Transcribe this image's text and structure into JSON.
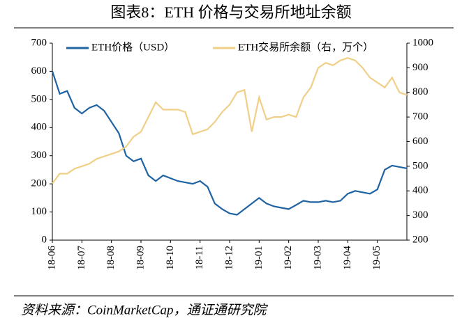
{
  "chart_data": {
    "type": "line",
    "title": "图表8：ETH 价格与交易所地址余额",
    "source": "资料来源：CoinMarketCap，通证通研究院",
    "categories": [
      "18-06",
      null,
      null,
      null,
      "18-07",
      null,
      null,
      null,
      "18-08",
      null,
      null,
      null,
      "18-09",
      null,
      null,
      null,
      "18-10",
      null,
      null,
      null,
      "18-11",
      null,
      null,
      null,
      "18-12",
      null,
      null,
      null,
      "19-01",
      null,
      null,
      null,
      "19-02",
      null,
      null,
      null,
      "19-03",
      null,
      null,
      null,
      "19-04",
      null,
      null,
      null,
      "19-05",
      null,
      null,
      null,
      null
    ],
    "series": [
      {
        "name": "ETH价格（USD）",
        "color": "#1f63a3",
        "values": [
          600,
          520,
          530,
          470,
          450,
          470,
          480,
          460,
          420,
          380,
          300,
          280,
          290,
          230,
          210,
          230,
          220,
          210,
          205,
          200,
          210,
          190,
          130,
          110,
          95,
          90,
          110,
          130,
          150,
          130,
          120,
          115,
          110,
          125,
          140,
          135,
          135,
          140,
          135,
          140,
          165,
          175,
          170,
          165,
          180,
          250,
          265,
          260,
          255
        ]
      },
      {
        "name": "ETH交易所余额（右，万个）",
        "color": "#f0cf88",
        "axis": "y2",
        "values": [
          430,
          470,
          470,
          490,
          500,
          510,
          530,
          540,
          550,
          560,
          580,
          620,
          640,
          700,
          760,
          730,
          730,
          730,
          720,
          630,
          640,
          650,
          680,
          720,
          750,
          800,
          810,
          640,
          780,
          690,
          700,
          700,
          710,
          700,
          780,
          820,
          900,
          920,
          910,
          930,
          940,
          930,
          900,
          860,
          840,
          820,
          860,
          800,
          790
        ]
      }
    ],
    "ylim": [
      0,
      700
    ],
    "yticks": [
      0,
      100,
      200,
      300,
      400,
      500,
      600,
      700
    ],
    "y2lim": [
      200,
      1000
    ],
    "y2ticks": [
      200,
      300,
      400,
      500,
      600,
      700,
      800,
      900,
      1000
    ],
    "legend": "top"
  }
}
